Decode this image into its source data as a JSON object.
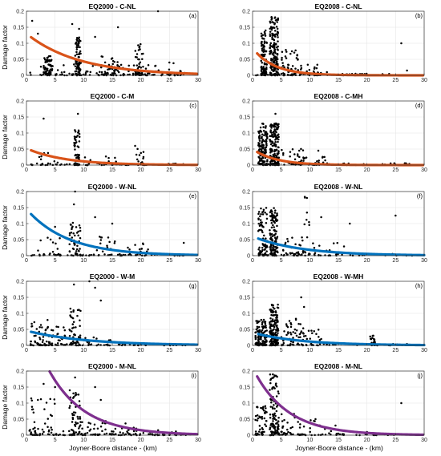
{
  "xlabel": "Joyner-Boore distance - (km)",
  "ylabel": "Damage factor",
  "colors": {
    "orange": "#D95319",
    "blue": "#0072BD",
    "purple": "#7E2F8E",
    "points": "#000000"
  },
  "chart_data": [
    {
      "type": "scatter",
      "title": "EQ2000 - C-NL",
      "tag": "(a)",
      "xlim": [
        0,
        30
      ],
      "ylim": [
        0,
        0.2
      ],
      "color": "orange",
      "curve": {
        "a": 0.13,
        "b": 0.11,
        "x0": 0.8
      },
      "clusters": [
        [
          3,
          4.5,
          0,
          0.06,
          60
        ],
        [
          8.5,
          9.5,
          0,
          0.12,
          70
        ],
        [
          13,
          16,
          0,
          0.06,
          40
        ],
        [
          19,
          20.5,
          0,
          0.1,
          40
        ],
        [
          0.5,
          28,
          0,
          0.04,
          70
        ],
        [
          0.5,
          28,
          0,
          0.008,
          70
        ]
      ],
      "points": [
        [
          1,
          0.17
        ],
        [
          8,
          0.16
        ],
        [
          9.2,
          0.145
        ],
        [
          16,
          0.15
        ],
        [
          23,
          0.2
        ],
        [
          12,
          0.12
        ],
        [
          2,
          0.13
        ]
      ]
    },
    {
      "type": "scatter",
      "title": "EQ2008 - C-NL",
      "tag": "(b)",
      "xlim": [
        0,
        30
      ],
      "ylim": [
        0,
        0.2
      ],
      "color": "orange",
      "curve": {
        "a": 0.085,
        "b": 0.27,
        "x0": 0.8
      },
      "clusters": [
        [
          1.5,
          2.5,
          0,
          0.15,
          100
        ],
        [
          3,
          4.5,
          0,
          0.19,
          170
        ],
        [
          5,
          8,
          0,
          0.08,
          50
        ],
        [
          8,
          12,
          0,
          0.04,
          25
        ],
        [
          0.5,
          24,
          0,
          0.006,
          60
        ]
      ],
      "points": [
        [
          26,
          0.1
        ],
        [
          27,
          0.015
        ],
        [
          13,
          0.01
        ],
        [
          18,
          0.005
        ]
      ]
    },
    {
      "type": "scatter",
      "title": "EQ2000 - C-M",
      "tag": "(c)",
      "xlim": [
        0,
        30
      ],
      "ylim": [
        0,
        0.2
      ],
      "color": "orange",
      "curve": {
        "a": 0.052,
        "b": 0.15,
        "x0": 0.8
      },
      "clusters": [
        [
          8.3,
          9.3,
          0,
          0.11,
          60
        ],
        [
          2,
          6,
          0,
          0.04,
          15
        ],
        [
          10,
          16,
          0,
          0.03,
          15
        ],
        [
          19,
          20.5,
          0,
          0.055,
          15
        ],
        [
          0.5,
          28,
          0,
          0.005,
          50
        ]
      ],
      "points": [
        [
          3,
          0.145
        ],
        [
          9,
          0.16
        ],
        [
          19,
          0.06
        ]
      ]
    },
    {
      "type": "scatter",
      "title": "EQ2008 - C-MH",
      "tag": "(d)",
      "xlim": [
        0,
        30
      ],
      "ylim": [
        0,
        0.2
      ],
      "color": "orange",
      "curve": {
        "a": 0.05,
        "b": 0.25,
        "x0": 0.8
      },
      "clusters": [
        [
          1,
          2.6,
          0,
          0.13,
          140
        ],
        [
          3,
          4.6,
          0,
          0.13,
          170
        ],
        [
          5,
          9,
          0,
          0.06,
          35
        ],
        [
          9,
          13,
          0,
          0.03,
          15
        ],
        [
          0.5,
          28,
          0,
          0.006,
          40
        ]
      ],
      "points": [
        [
          11.5,
          0.045
        ],
        [
          16,
          0.005
        ],
        [
          4,
          0.16
        ]
      ]
    },
    {
      "type": "scatter",
      "title": "EQ2000 - W-NL",
      "tag": "(e)",
      "xlim": [
        0,
        30
      ],
      "ylim": [
        0,
        0.2
      ],
      "color": "blue",
      "curve": {
        "a": 0.145,
        "b": 0.14,
        "x0": 0.8
      },
      "clusters": [
        [
          7.5,
          9.5,
          0,
          0.11,
          50
        ],
        [
          2,
          6,
          0,
          0.06,
          15
        ],
        [
          12,
          16,
          0,
          0.06,
          15
        ],
        [
          17,
          22,
          0,
          0.04,
          15
        ],
        [
          0.5,
          28,
          0,
          0.005,
          60
        ]
      ],
      "points": [
        [
          8.5,
          0.2
        ],
        [
          8.3,
          0.16
        ],
        [
          12,
          0.12
        ],
        [
          15,
          0.1
        ],
        [
          27.5,
          0.04
        ],
        [
          5,
          0.09
        ]
      ]
    },
    {
      "type": "scatter",
      "title": "EQ2008 - W-NL",
      "tag": "(f)",
      "xlim": [
        0,
        30
      ],
      "ylim": [
        0,
        0.2
      ],
      "color": "blue",
      "curve": {
        "a": 0.06,
        "b": 0.12,
        "x0": 1
      },
      "clusters": [
        [
          1,
          2.6,
          0,
          0.15,
          80
        ],
        [
          3,
          4.4,
          0,
          0.15,
          120
        ],
        [
          5,
          9,
          0,
          0.06,
          25
        ],
        [
          8,
          10,
          0,
          0.19,
          15
        ],
        [
          10,
          16,
          0,
          0.04,
          15
        ],
        [
          0.5,
          28,
          0,
          0.006,
          50
        ]
      ],
      "points": [
        [
          25,
          0.125
        ],
        [
          17,
          0.1
        ],
        [
          12,
          0.12
        ],
        [
          9.5,
          0.18
        ]
      ]
    },
    {
      "type": "scatter",
      "title": "EQ2000 - W-M",
      "tag": "(g)",
      "xlim": [
        0,
        30
      ],
      "ylim": [
        0,
        0.2
      ],
      "color": "blue",
      "curve": {
        "a": 0.046,
        "b": 0.1,
        "x0": 0.8
      },
      "clusters": [
        [
          0.5,
          4,
          0,
          0.08,
          40
        ],
        [
          4,
          7,
          0,
          0.06,
          25
        ],
        [
          7.5,
          9.5,
          0,
          0.12,
          50
        ],
        [
          10,
          16,
          0,
          0.03,
          15
        ],
        [
          0.5,
          28,
          0,
          0.005,
          60
        ]
      ],
      "points": [
        [
          8.3,
          0.19
        ],
        [
          11,
          0.2
        ],
        [
          12,
          0.18
        ],
        [
          13,
          0.14
        ],
        [
          1,
          0.06
        ]
      ]
    },
    {
      "type": "scatter",
      "title": "EQ2008 - W-MH",
      "tag": "(h)",
      "xlim": [
        0,
        30
      ],
      "ylim": [
        0,
        0.2
      ],
      "color": "blue",
      "curve": {
        "a": 0.04,
        "b": 0.12,
        "x0": 1
      },
      "clusters": [
        [
          0.5,
          2.5,
          0,
          0.08,
          110
        ],
        [
          3,
          4.5,
          0,
          0.13,
          160
        ],
        [
          5,
          9,
          0,
          0.09,
          50
        ],
        [
          8.5,
          12,
          0,
          0.05,
          20
        ],
        [
          20.5,
          21.5,
          0,
          0.035,
          20
        ],
        [
          0.5,
          28,
          0,
          0.005,
          50
        ]
      ],
      "points": [
        [
          9,
          0.12
        ],
        [
          8.5,
          0.15
        ],
        [
          12,
          0.02
        ],
        [
          21,
          0.03
        ]
      ]
    },
    {
      "type": "scatter",
      "title": "EQ2000 - M-NL",
      "tag": "(i)",
      "xlim": [
        0,
        30
      ],
      "ylim": [
        0,
        0.2
      ],
      "color": "purple",
      "curve": {
        "a": 0.38,
        "b": 0.16,
        "x0": 0.8
      },
      "clusters": [
        [
          0.5,
          5,
          0,
          0.12,
          30
        ],
        [
          7.5,
          9.5,
          0,
          0.14,
          50
        ],
        [
          9.5,
          14,
          0,
          0.06,
          20
        ],
        [
          15,
          20,
          0,
          0.04,
          15
        ],
        [
          0.5,
          29,
          0,
          0.02,
          60
        ],
        [
          0.5,
          29,
          0,
          0.004,
          50
        ]
      ],
      "points": [
        [
          2,
          0.11
        ],
        [
          1,
          0.08
        ],
        [
          5,
          0.15
        ],
        [
          8.5,
          0.18
        ],
        [
          12,
          0.15
        ],
        [
          13,
          0.11
        ],
        [
          3,
          0.16
        ]
      ]
    },
    {
      "type": "scatter",
      "title": "EQ2008 - M-NL",
      "tag": "(j)",
      "xlim": [
        0,
        30
      ],
      "ylim": [
        0,
        0.2
      ],
      "color": "purple",
      "curve": {
        "a": 0.21,
        "b": 0.17,
        "x0": 0.8
      },
      "clusters": [
        [
          0.5,
          2.5,
          0,
          0.1,
          50
        ],
        [
          3,
          4.6,
          0,
          0.19,
          110
        ],
        [
          5,
          8,
          0,
          0.07,
          25
        ],
        [
          8,
          14,
          0,
          0.05,
          20
        ],
        [
          0.5,
          26,
          0,
          0.005,
          50
        ]
      ],
      "points": [
        [
          26,
          0.1
        ],
        [
          14.5,
          0.03
        ],
        [
          11,
          0.05
        ],
        [
          20,
          0.01
        ],
        [
          24,
          0.002
        ]
      ]
    }
  ]
}
